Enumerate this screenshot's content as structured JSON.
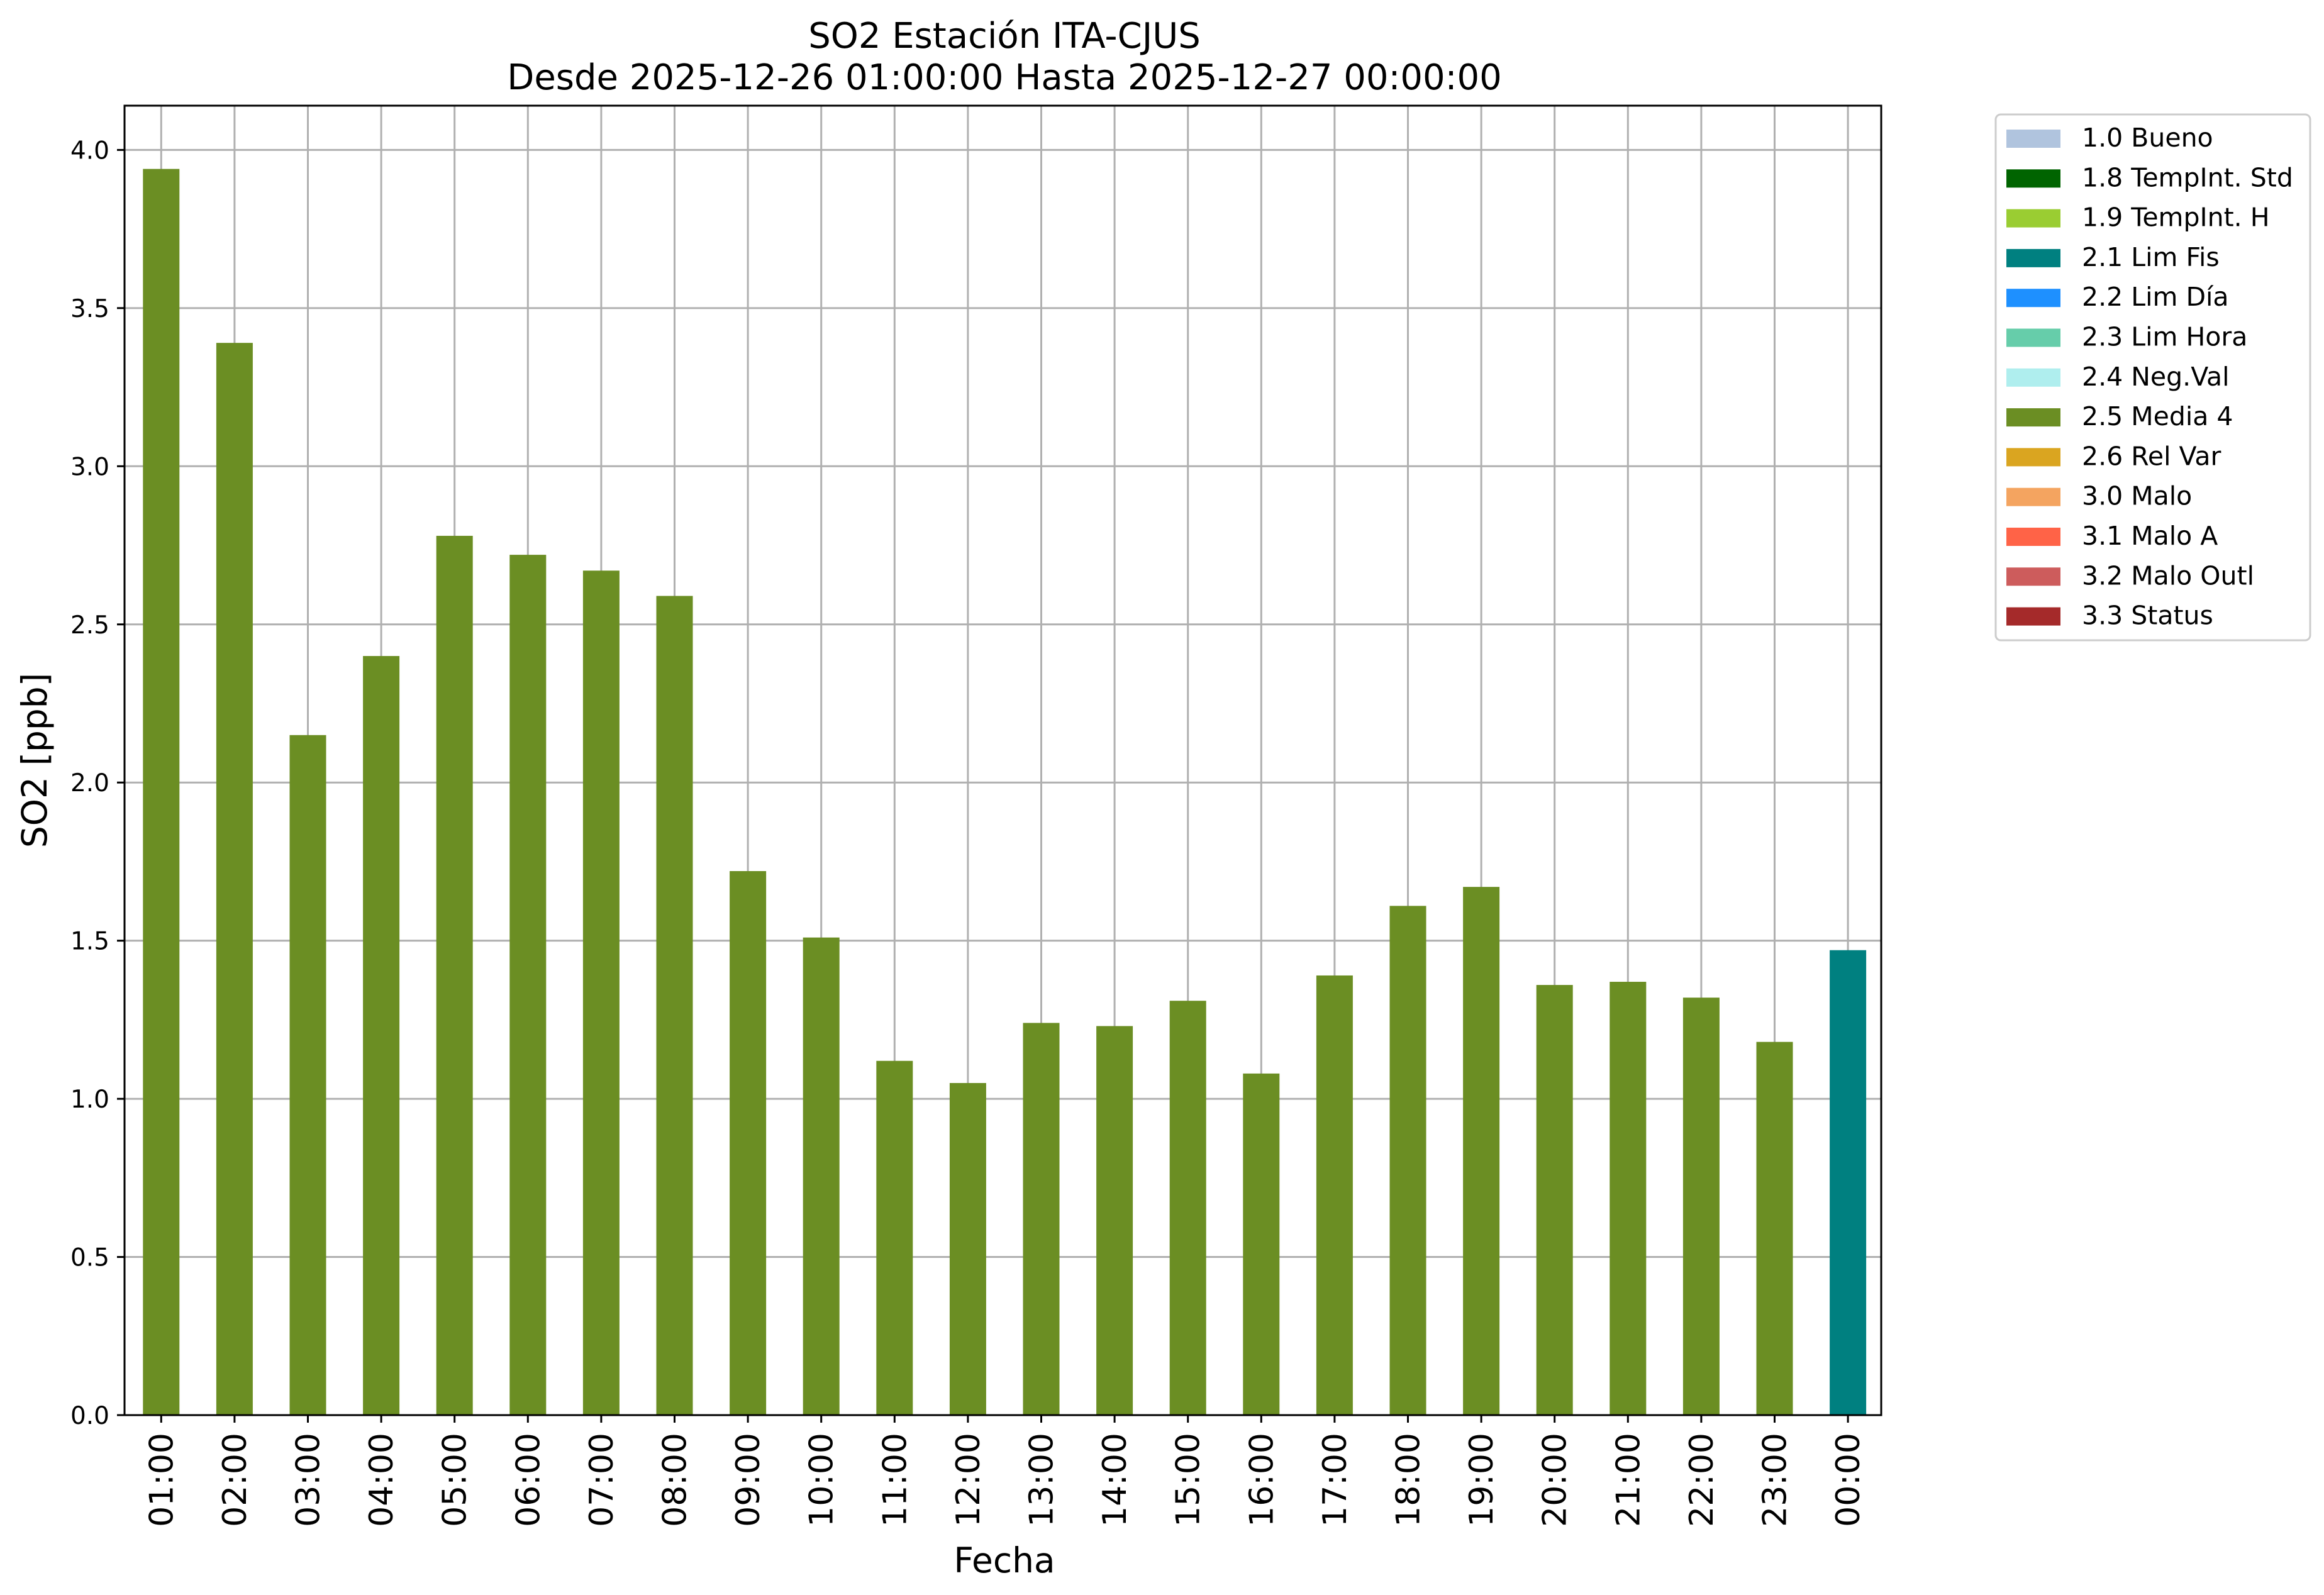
{
  "chart_data": {
    "type": "bar",
    "title": [
      "SO2 Estación ITA-CJUS",
      "Desde 2025-12-26 01:00:00 Hasta 2025-12-27 00:00:00"
    ],
    "xlabel": "Fecha",
    "ylabel": "SO2 [ppb]",
    "ylim": [
      0,
      4.14
    ],
    "yticks": [
      "0.0",
      "0.5",
      "1.0",
      "1.5",
      "2.0",
      "2.5",
      "3.0",
      "3.5",
      "4.0"
    ],
    "grid": true,
    "legend_position": "outside right, top",
    "categories": [
      "01:00",
      "02:00",
      "03:00",
      "04:00",
      "05:00",
      "06:00",
      "07:00",
      "08:00",
      "09:00",
      "10:00",
      "11:00",
      "12:00",
      "13:00",
      "14:00",
      "15:00",
      "16:00",
      "17:00",
      "18:00",
      "19:00",
      "20:00",
      "21:00",
      "22:00",
      "23:00",
      "00:00"
    ],
    "values": [
      3.94,
      3.39,
      2.15,
      2.4,
      2.78,
      2.72,
      2.67,
      2.59,
      1.72,
      1.51,
      1.12,
      1.05,
      1.24,
      1.23,
      1.31,
      1.08,
      1.39,
      1.61,
      1.67,
      1.36,
      1.37,
      1.32,
      1.18,
      1.47
    ],
    "flags": [
      "2.5 Media 4",
      "2.5 Media 4",
      "2.5 Media 4",
      "2.5 Media 4",
      "2.5 Media 4",
      "2.5 Media 4",
      "2.5 Media 4",
      "2.5 Media 4",
      "2.5 Media 4",
      "2.5 Media 4",
      "2.5 Media 4",
      "2.5 Media 4",
      "2.5 Media 4",
      "2.5 Media 4",
      "2.5 Media 4",
      "2.5 Media 4",
      "2.5 Media 4",
      "2.5 Media 4",
      "2.5 Media 4",
      "2.5 Media 4",
      "2.5 Media 4",
      "2.5 Media 4",
      "2.5 Media 4",
      "2.1 Lim Fis"
    ],
    "legend": [
      {
        "label": "1.0 Bueno",
        "color": "#b0c4de"
      },
      {
        "label": "1.8 TempInt. Std",
        "color": "#006400"
      },
      {
        "label": "1.9 TempInt. H",
        "color": "#9acd32"
      },
      {
        "label": "2.1 Lim Fis",
        "color": "#008080"
      },
      {
        "label": "2.2 Lim Día",
        "color": "#1e90ff"
      },
      {
        "label": "2.3 Lim Hora",
        "color": "#66cdaa"
      },
      {
        "label": "2.4 Neg.Val",
        "color": "#afeeee"
      },
      {
        "label": "2.5 Media 4",
        "color": "#6b8e23"
      },
      {
        "label": "2.6 Rel Var",
        "color": "#daa520"
      },
      {
        "label": "3.0 Malo",
        "color": "#f4a460"
      },
      {
        "label": "3.1 Malo A",
        "color": "#ff6347"
      },
      {
        "label": "3.2 Malo Outl",
        "color": "#cd5c5c"
      },
      {
        "label": "3.3 Status",
        "color": "#a52a2a"
      }
    ]
  }
}
